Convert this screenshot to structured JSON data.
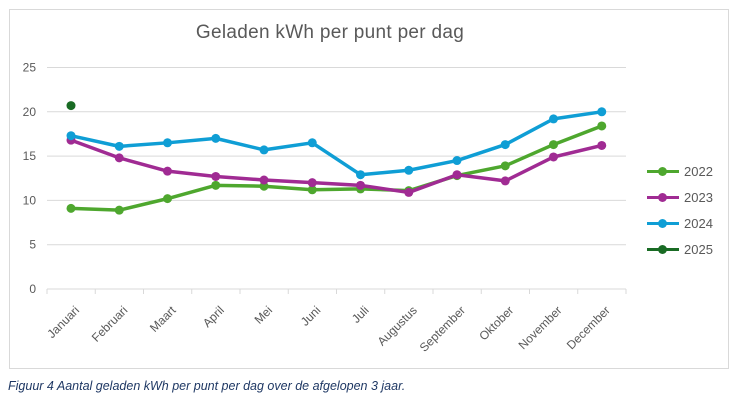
{
  "caption": "Figuur 4 Aantal geladen kWh per punt per dag over de afgelopen 3 jaar.",
  "colors": {
    "grid": "#D9D9D9",
    "axis": "#D9D9D9",
    "tick_label": "#595959",
    "title": "#595959",
    "legend_text": "#595959",
    "caption_text": "#1F3864"
  },
  "chart_data": {
    "type": "line",
    "title": "Geladen kWh per punt per dag",
    "xlabel": "",
    "ylabel": "",
    "ylim": [
      0,
      25
    ],
    "yticks": [
      0,
      5,
      10,
      15,
      20,
      25
    ],
    "grid": true,
    "legend_position": "right",
    "categories": [
      "Januari",
      "Februari",
      "Maart",
      "April",
      "Mei",
      "Juni",
      "Juli",
      "Augustus",
      "September",
      "Oktober",
      "November",
      "December"
    ],
    "series": [
      {
        "name": "2022",
        "color": "#4EA72E",
        "values": [
          9.1,
          8.9,
          10.2,
          11.7,
          11.6,
          11.2,
          11.3,
          11.1,
          12.8,
          13.9,
          16.3,
          18.4
        ]
      },
      {
        "name": "2023",
        "color": "#A02B93",
        "values": [
          16.8,
          14.8,
          13.3,
          12.7,
          12.3,
          12.0,
          11.7,
          10.9,
          12.9,
          12.2,
          14.9,
          16.2
        ]
      },
      {
        "name": "2024",
        "color": "#0F9ED5",
        "values": [
          17.3,
          16.1,
          16.5,
          17.0,
          15.7,
          16.5,
          12.9,
          13.4,
          14.5,
          16.3,
          19.2,
          20.0
        ]
      },
      {
        "name": "2025",
        "color": "#196B24",
        "values": [
          20.7,
          null,
          null,
          null,
          null,
          null,
          null,
          null,
          null,
          null,
          null,
          null
        ]
      }
    ]
  }
}
